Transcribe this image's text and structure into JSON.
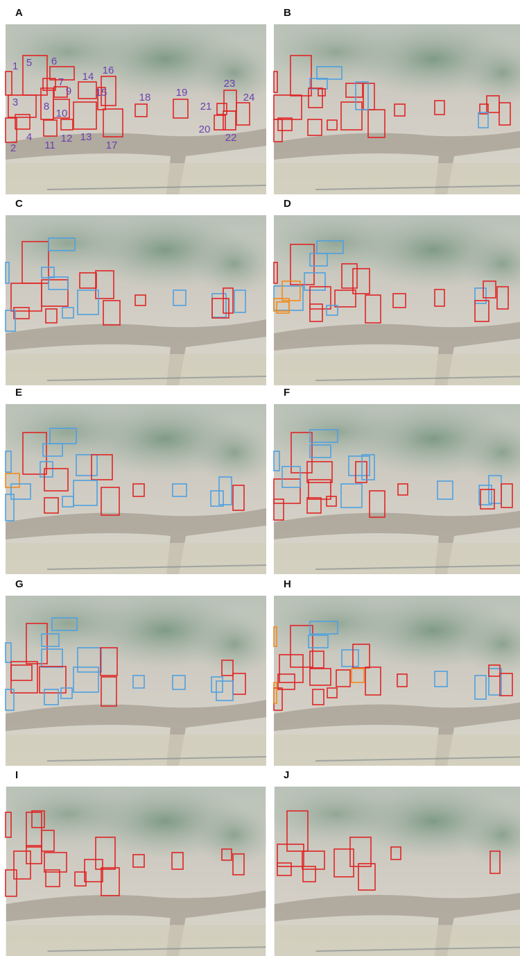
{
  "panels": [
    {
      "label": "A",
      "box_labels": [
        "1",
        "2",
        "3",
        "4",
        "5",
        "6",
        "7",
        "8",
        "9",
        "10",
        "11",
        "12",
        "13",
        "14",
        "15",
        "16",
        "17",
        "18",
        "19",
        "20",
        "21",
        "22",
        "23",
        "24"
      ]
    },
    {
      "label": "B"
    },
    {
      "label": "C"
    },
    {
      "label": "D"
    },
    {
      "label": "E"
    },
    {
      "label": "F"
    },
    {
      "label": "G"
    },
    {
      "label": "H"
    },
    {
      "label": "I"
    },
    {
      "label": "J"
    }
  ]
}
